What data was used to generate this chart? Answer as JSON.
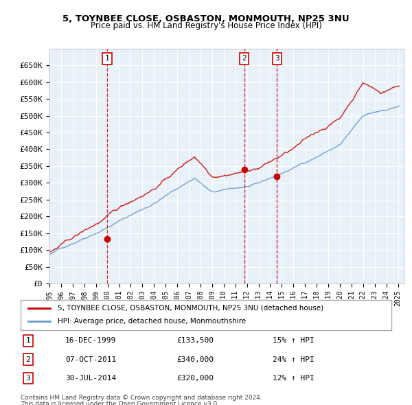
{
  "title": "5, TOYNBEE CLOSE, OSBASTON, MONMOUTH, NP25 3NU",
  "subtitle": "Price paid vs. HM Land Registry's House Price Index (HPI)",
  "legend_line1": "5, TOYNBEE CLOSE, OSBASTON, MONMOUTH, NP25 3NU (detached house)",
  "legend_line2": "HPI: Average price, detached house, Monmouthshire",
  "footer1": "Contains HM Land Registry data © Crown copyright and database right 2024.",
  "footer2": "This data is licensed under the Open Government Licence v3.0.",
  "sale_labels": [
    "1",
    "2",
    "3"
  ],
  "sale_dates_str": [
    "16-DEC-1999",
    "07-OCT-2011",
    "30-JUL-2014"
  ],
  "sale_prices": [
    133500,
    340000,
    320000
  ],
  "sale_hpi_pct": [
    "15% ↑ HPI",
    "24% ↑ HPI",
    "12% ↑ HPI"
  ],
  "sale_dates_num": [
    1999.96,
    2011.77,
    2014.58
  ],
  "red_color": "#cc0000",
  "blue_color": "#6699cc",
  "bg_color": "#e8f0f8",
  "grid_color": "#ffffff",
  "ylabel_color": "#000000",
  "vline_color": "#cc0000",
  "ylim": [
    0,
    700000
  ],
  "yticks": [
    0,
    50000,
    100000,
    150000,
    200000,
    250000,
    300000,
    350000,
    400000,
    450000,
    500000,
    550000,
    600000,
    650000
  ],
  "ytick_labels": [
    "£0",
    "£50K",
    "£100K",
    "£150K",
    "£200K",
    "£250K",
    "£300K",
    "£350K",
    "£400K",
    "£450K",
    "£500K",
    "£550K",
    "£600K",
    "£650K"
  ]
}
